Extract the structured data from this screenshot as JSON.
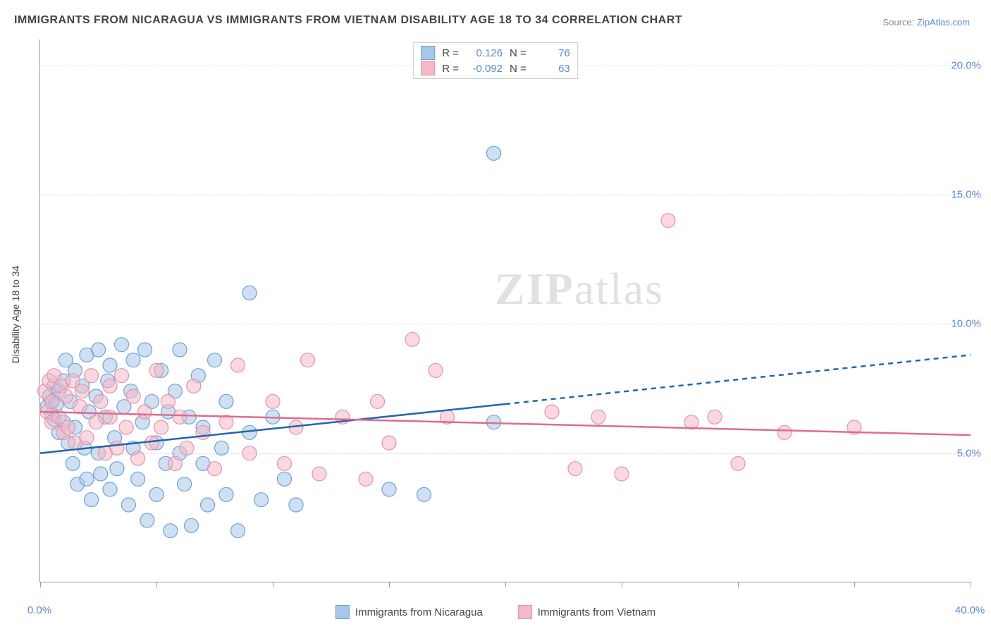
{
  "title": "IMMIGRANTS FROM NICARAGUA VS IMMIGRANTS FROM VIETNAM DISABILITY AGE 18 TO 34 CORRELATION CHART",
  "source_prefix": "Source: ",
  "source_link": "ZipAtlas.com",
  "ylabel": "Disability Age 18 to 34",
  "watermark_a": "ZIP",
  "watermark_b": "atlas",
  "chart": {
    "type": "scatter-with-trend",
    "xmin": 0,
    "xmax": 40,
    "ymin": 0,
    "ymax": 21,
    "xticks": [
      0,
      5,
      10,
      15,
      20,
      25,
      30,
      35,
      40
    ],
    "xtick_labels": {
      "0": "0.0%",
      "40": "40.0%"
    },
    "yticks": [
      5,
      10,
      15,
      20
    ],
    "ytick_labels": {
      "5": "5.0%",
      "10": "10.0%",
      "15": "15.0%",
      "20": "20.0%"
    },
    "background_color": "#ffffff",
    "grid_color": "#d8d8d8",
    "axis_color": "#999999",
    "tick_label_color": "#5a8cc7",
    "marker_radius": 10,
    "marker_opacity": 0.55,
    "series": [
      {
        "name": "Immigrants from Nicaragua",
        "fill": "#a8c6e8",
        "stroke": "#6fa0d4",
        "trend_color": "#2166ac",
        "trend_width": 2.5,
        "trend_solid_to_x": 20,
        "trend": {
          "x1": 0,
          "y1": 5.0,
          "x2": 40,
          "y2": 8.8
        },
        "R": "0.126",
        "N": "76",
        "points": [
          [
            0.3,
            6.8
          ],
          [
            0.4,
            7.2
          ],
          [
            0.5,
            6.5
          ],
          [
            0.5,
            7.0
          ],
          [
            0.6,
            6.3
          ],
          [
            0.6,
            7.6
          ],
          [
            0.7,
            6.9
          ],
          [
            0.8,
            5.8
          ],
          [
            0.8,
            7.4
          ],
          [
            1.0,
            7.8
          ],
          [
            1.0,
            6.2
          ],
          [
            1.1,
            8.6
          ],
          [
            1.2,
            5.4
          ],
          [
            1.3,
            7.0
          ],
          [
            1.4,
            4.6
          ],
          [
            1.5,
            8.2
          ],
          [
            1.5,
            6.0
          ],
          [
            1.6,
            3.8
          ],
          [
            1.8,
            7.6
          ],
          [
            1.9,
            5.2
          ],
          [
            2.0,
            8.8
          ],
          [
            2.0,
            4.0
          ],
          [
            2.1,
            6.6
          ],
          [
            2.2,
            3.2
          ],
          [
            2.4,
            7.2
          ],
          [
            2.5,
            5.0
          ],
          [
            2.5,
            9.0
          ],
          [
            2.6,
            4.2
          ],
          [
            2.8,
            6.4
          ],
          [
            2.9,
            7.8
          ],
          [
            3.0,
            3.6
          ],
          [
            3.0,
            8.4
          ],
          [
            3.2,
            5.6
          ],
          [
            3.3,
            4.4
          ],
          [
            3.5,
            9.2
          ],
          [
            3.6,
            6.8
          ],
          [
            3.8,
            3.0
          ],
          [
            3.9,
            7.4
          ],
          [
            4.0,
            5.2
          ],
          [
            4.0,
            8.6
          ],
          [
            4.2,
            4.0
          ],
          [
            4.4,
            6.2
          ],
          [
            4.5,
            9.0
          ],
          [
            4.6,
            2.4
          ],
          [
            4.8,
            7.0
          ],
          [
            5.0,
            5.4
          ],
          [
            5.0,
            3.4
          ],
          [
            5.2,
            8.2
          ],
          [
            5.4,
            4.6
          ],
          [
            5.5,
            6.6
          ],
          [
            5.6,
            2.0
          ],
          [
            5.8,
            7.4
          ],
          [
            6.0,
            5.0
          ],
          [
            6.0,
            9.0
          ],
          [
            6.2,
            3.8
          ],
          [
            6.4,
            6.4
          ],
          [
            6.5,
            2.2
          ],
          [
            6.8,
            8.0
          ],
          [
            7.0,
            4.6
          ],
          [
            7.0,
            6.0
          ],
          [
            7.2,
            3.0
          ],
          [
            7.5,
            8.6
          ],
          [
            7.8,
            5.2
          ],
          [
            8.0,
            3.4
          ],
          [
            8.0,
            7.0
          ],
          [
            8.5,
            2.0
          ],
          [
            9.0,
            11.2
          ],
          [
            9.0,
            5.8
          ],
          [
            9.5,
            3.2
          ],
          [
            10.0,
            6.4
          ],
          [
            10.5,
            4.0
          ],
          [
            11.0,
            3.0
          ],
          [
            15.0,
            3.6
          ],
          [
            16.5,
            3.4
          ],
          [
            19.5,
            16.6
          ],
          [
            19.5,
            6.2
          ]
        ]
      },
      {
        "name": "Immigrants from Vietnam",
        "fill": "#f4b8c6",
        "stroke": "#e592a8",
        "trend_color": "#e06b8f",
        "trend_width": 2.5,
        "trend_solid_to_x": 40,
        "trend": {
          "x1": 0,
          "y1": 6.6,
          "x2": 40,
          "y2": 5.7
        },
        "R": "-0.092",
        "N": "63",
        "points": [
          [
            0.2,
            7.4
          ],
          [
            0.3,
            6.6
          ],
          [
            0.4,
            7.8
          ],
          [
            0.5,
            6.2
          ],
          [
            0.5,
            7.0
          ],
          [
            0.6,
            8.0
          ],
          [
            0.8,
            6.4
          ],
          [
            0.9,
            7.6
          ],
          [
            1.0,
            5.8
          ],
          [
            1.1,
            7.2
          ],
          [
            1.2,
            6.0
          ],
          [
            1.4,
            7.8
          ],
          [
            1.5,
            5.4
          ],
          [
            1.7,
            6.8
          ],
          [
            1.8,
            7.4
          ],
          [
            2.0,
            5.6
          ],
          [
            2.2,
            8.0
          ],
          [
            2.4,
            6.2
          ],
          [
            2.6,
            7.0
          ],
          [
            2.8,
            5.0
          ],
          [
            3.0,
            7.6
          ],
          [
            3.0,
            6.4
          ],
          [
            3.3,
            5.2
          ],
          [
            3.5,
            8.0
          ],
          [
            3.7,
            6.0
          ],
          [
            4.0,
            7.2
          ],
          [
            4.2,
            4.8
          ],
          [
            4.5,
            6.6
          ],
          [
            4.8,
            5.4
          ],
          [
            5.0,
            8.2
          ],
          [
            5.2,
            6.0
          ],
          [
            5.5,
            7.0
          ],
          [
            5.8,
            4.6
          ],
          [
            6.0,
            6.4
          ],
          [
            6.3,
            5.2
          ],
          [
            6.6,
            7.6
          ],
          [
            7.0,
            5.8
          ],
          [
            7.5,
            4.4
          ],
          [
            8.0,
            6.2
          ],
          [
            8.5,
            8.4
          ],
          [
            9.0,
            5.0
          ],
          [
            10.0,
            7.0
          ],
          [
            10.5,
            4.6
          ],
          [
            11.0,
            6.0
          ],
          [
            11.5,
            8.6
          ],
          [
            12.0,
            4.2
          ],
          [
            13.0,
            6.4
          ],
          [
            14.0,
            4.0
          ],
          [
            14.5,
            7.0
          ],
          [
            15.0,
            5.4
          ],
          [
            16.0,
            9.4
          ],
          [
            17.0,
            8.2
          ],
          [
            17.5,
            6.4
          ],
          [
            22.0,
            6.6
          ],
          [
            23.0,
            4.4
          ],
          [
            24.0,
            6.4
          ],
          [
            25.0,
            4.2
          ],
          [
            27.0,
            14.0
          ],
          [
            28.0,
            6.2
          ],
          [
            29.0,
            6.4
          ],
          [
            30.0,
            4.6
          ],
          [
            32.0,
            5.8
          ],
          [
            35.0,
            6.0
          ]
        ]
      }
    ]
  },
  "legend_top": {
    "R_label": "R =",
    "N_label": "N ="
  }
}
